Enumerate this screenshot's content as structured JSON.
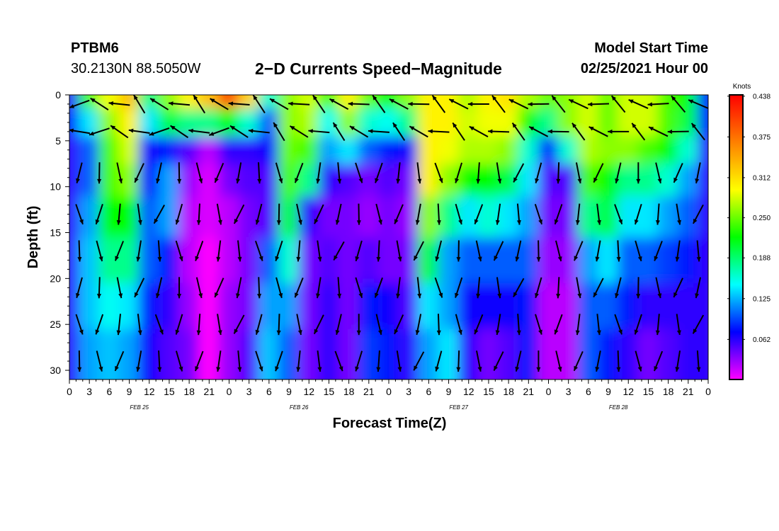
{
  "header": {
    "station": "PTBM6",
    "coords": "30.2130N 88.5050W",
    "title": "2−D Currents Speed−Magnitude",
    "start_label": "Model Start Time",
    "start_value": "02/25/2021 Hour 00"
  },
  "chart_data": {
    "type": "heatmap",
    "title": "2-D Currents Speed-Magnitude",
    "xlabel": "Forecast Time(Z)",
    "ylabel": "Depth (ft)",
    "x_range_hours": [
      0,
      96
    ],
    "y_range_ft": [
      0,
      31
    ],
    "x_ticks": [
      "0",
      "3",
      "6",
      "9",
      "12",
      "15",
      "18",
      "21",
      "0",
      "3",
      "6",
      "9",
      "12",
      "15",
      "18",
      "21",
      "0",
      "3",
      "6",
      "9",
      "12",
      "15",
      "18",
      "21",
      "0",
      "3",
      "6",
      "9",
      "12",
      "15",
      "18",
      "21",
      "0"
    ],
    "y_ticks": [
      "0",
      "5",
      "10",
      "15",
      "20",
      "25",
      "30"
    ],
    "y_tick_values": [
      0,
      5,
      10,
      15,
      20,
      25,
      30
    ],
    "date_labels": [
      "FEB 25",
      "FEB 26",
      "FEB 27",
      "FEB 28"
    ],
    "date_label_hours": [
      10.5,
      34.5,
      58.5,
      82.5
    ],
    "colorbar": {
      "title": "Knots",
      "ticks": [
        "0.438",
        "0.375",
        "0.312",
        "0.250",
        "0.188",
        "0.125",
        "0.062"
      ],
      "tick_values": [
        0.438,
        0.375,
        0.312,
        0.25,
        0.188,
        0.125,
        0.062
      ],
      "range": [
        0,
        0.44
      ],
      "colors": [
        "#ff00ff",
        "#0000ff",
        "#00ffff",
        "#00ff00",
        "#ffff00",
        "#ff8000",
        "#ff0000"
      ]
    },
    "speed_knots_matrix": [
      [
        0.06,
        0.24,
        0.29,
        0.33,
        0.18,
        0.26,
        0.3,
        0.33,
        0.4,
        0.32,
        0.16,
        0.26,
        0.28,
        0.24,
        0.3,
        0.25,
        0.22,
        0.26,
        0.3,
        0.3,
        0.27,
        0.3,
        0.31,
        0.27,
        0.25,
        0.26,
        0.28,
        0.25,
        0.28,
        0.28,
        0.24,
        0.22,
        0.08
      ],
      [
        0.08,
        0.14,
        0.26,
        0.3,
        0.14,
        0.2,
        0.18,
        0.18,
        0.22,
        0.16,
        0.1,
        0.26,
        0.27,
        0.15,
        0.26,
        0.16,
        0.15,
        0.18,
        0.3,
        0.3,
        0.28,
        0.29,
        0.29,
        0.22,
        0.18,
        0.26,
        0.28,
        0.25,
        0.28,
        0.28,
        0.24,
        0.2,
        0.08
      ],
      [
        0.06,
        0.1,
        0.24,
        0.28,
        0.07,
        0.08,
        0.05,
        0.02,
        0.06,
        0.06,
        0.07,
        0.25,
        0.24,
        0.12,
        0.14,
        0.1,
        0.08,
        0.07,
        0.3,
        0.29,
        0.27,
        0.27,
        0.26,
        0.16,
        0.08,
        0.16,
        0.27,
        0.26,
        0.26,
        0.24,
        0.22,
        0.16,
        0.06
      ],
      [
        0.06,
        0.1,
        0.24,
        0.26,
        0.08,
        0.12,
        0.03,
        0.01,
        0.04,
        0.05,
        0.05,
        0.24,
        0.18,
        0.06,
        0.05,
        0.04,
        0.05,
        0.04,
        0.3,
        0.26,
        0.22,
        0.22,
        0.2,
        0.14,
        0.05,
        0.05,
        0.24,
        0.22,
        0.18,
        0.18,
        0.16,
        0.12,
        0.06
      ],
      [
        0.06,
        0.12,
        0.22,
        0.22,
        0.1,
        0.12,
        0.02,
        0.01,
        0.02,
        0.04,
        0.05,
        0.2,
        0.06,
        0.04,
        0.04,
        0.03,
        0.04,
        0.03,
        0.26,
        0.18,
        0.14,
        0.16,
        0.14,
        0.12,
        0.04,
        0.04,
        0.18,
        0.2,
        0.14,
        0.14,
        0.12,
        0.1,
        0.06
      ],
      [
        0.06,
        0.13,
        0.18,
        0.18,
        0.1,
        0.08,
        0.02,
        0.0,
        0.02,
        0.04,
        0.1,
        0.16,
        0.04,
        0.05,
        0.04,
        0.05,
        0.04,
        0.04,
        0.2,
        0.12,
        0.1,
        0.1,
        0.1,
        0.1,
        0.03,
        0.03,
        0.12,
        0.14,
        0.1,
        0.1,
        0.09,
        0.08,
        0.06
      ],
      [
        0.06,
        0.13,
        0.15,
        0.14,
        0.08,
        0.06,
        0.03,
        0.0,
        0.03,
        0.04,
        0.12,
        0.12,
        0.04,
        0.06,
        0.04,
        0.08,
        0.07,
        0.05,
        0.14,
        0.12,
        0.07,
        0.07,
        0.07,
        0.08,
        0.02,
        0.02,
        0.1,
        0.1,
        0.08,
        0.06,
        0.06,
        0.06,
        0.06
      ],
      [
        0.06,
        0.12,
        0.13,
        0.12,
        0.07,
        0.05,
        0.04,
        0.0,
        0.03,
        0.05,
        0.13,
        0.1,
        0.04,
        0.06,
        0.04,
        0.09,
        0.08,
        0.06,
        0.12,
        0.14,
        0.06,
        0.04,
        0.05,
        0.08,
        0.02,
        0.02,
        0.1,
        0.08,
        0.06,
        0.04,
        0.05,
        0.06,
        0.06
      ]
    ],
    "matrix_depths_ft": [
      0,
      3,
      6,
      9,
      13,
      18,
      23,
      28
    ]
  },
  "plot": {
    "x_axis_label": "Forecast Time(Z)",
    "y_axis_label": "Depth (ft)"
  }
}
